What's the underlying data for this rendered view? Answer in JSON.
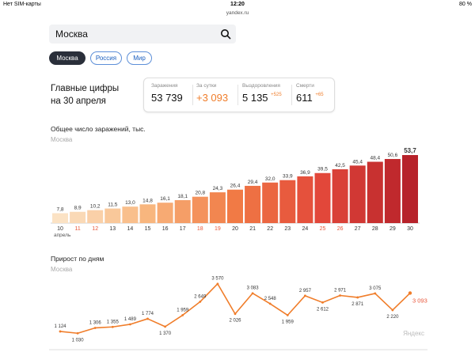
{
  "status_bar": {
    "carrier": "Нет SIM-карты",
    "time": "12:20",
    "url": "yandex.ru",
    "battery": "80 %"
  },
  "search": {
    "value": "Москва"
  },
  "regions": [
    {
      "label": "Москва",
      "active": true
    },
    {
      "label": "Россия",
      "active": false
    },
    {
      "label": "Мир",
      "active": false
    }
  ],
  "summary": {
    "title_line1": "Главные цифры",
    "title_line2": "на 30 апреля",
    "stats": [
      {
        "label": "Заражения",
        "value": "53 739",
        "delta": ""
      },
      {
        "label": "За сутки",
        "value": "+3 093",
        "delta": ""
      },
      {
        "label": "Выздоровления",
        "value": "5 135",
        "delta": "+525"
      },
      {
        "label": "Смерти",
        "value": "611",
        "delta": "+65"
      }
    ]
  },
  "total_chart": {
    "title": "Общее число заражений, тыс.",
    "region": "Москва",
    "month_label": "апрель"
  },
  "daily_chart": {
    "title": "Прирост по дням",
    "region": "Москва"
  },
  "watermark": "Яндекс",
  "colors": {
    "orange": "#f07d2a",
    "weekend": "#e8563a",
    "dark_red": "#b7222a",
    "light_bar": "#fbe0c0"
  },
  "chart_data": [
    {
      "type": "bar",
      "title": "Общее число заражений, тыс.",
      "categories": [
        "10",
        "11",
        "12",
        "13",
        "14",
        "15",
        "16",
        "17",
        "18",
        "19",
        "20",
        "21",
        "22",
        "23",
        "24",
        "25",
        "26",
        "27",
        "28",
        "29",
        "30"
      ],
      "values": [
        7.8,
        8.9,
        10.2,
        11.5,
        13.0,
        14.8,
        16.1,
        18.1,
        20.8,
        24.3,
        26.4,
        29.4,
        32.0,
        33.9,
        36.9,
        39.5,
        42.5,
        45.4,
        48.4,
        50.6,
        53.7
      ],
      "value_labels": [
        "7,8",
        "8,9",
        "10,2",
        "11,5",
        "13,0",
        "14,8",
        "16,1",
        "18,1",
        "20,8",
        "24,3",
        "26,4",
        "29,4",
        "32,0",
        "33,9",
        "36,9",
        "39,5",
        "42,5",
        "45,4",
        "48,4",
        "50,6",
        "53,7"
      ],
      "weekend_days": [
        "11",
        "12",
        "18",
        "19",
        "25",
        "26"
      ],
      "xlabel": "",
      "ylabel": ""
    },
    {
      "type": "line",
      "title": "Прирост по дням",
      "categories": [
        "10",
        "11",
        "12",
        "13",
        "14",
        "15",
        "16",
        "17",
        "18",
        "19",
        "20",
        "21",
        "22",
        "23",
        "24",
        "25",
        "26",
        "27",
        "28",
        "29",
        "30"
      ],
      "values": [
        1124,
        1030,
        1306,
        1355,
        1489,
        1774,
        1370,
        1959,
        2649,
        3570,
        2026,
        3083,
        2548,
        1959,
        2957,
        2612,
        2971,
        2871,
        3075,
        2220,
        3093
      ],
      "value_labels": [
        "1 124",
        "1 030",
        "1 306",
        "1 355",
        "1 489",
        "1 774",
        "1 370",
        "1 959",
        "2 649",
        "3 570",
        "2 026",
        "3 083",
        "2 548",
        "1 959",
        "2 957",
        "2 612",
        "2 971",
        "2 871",
        "3 075",
        "2 220",
        "3 093"
      ],
      "weekend_days": [
        "11",
        "12",
        "18",
        "19",
        "25",
        "26"
      ],
      "xlabel": "",
      "ylabel": ""
    }
  ]
}
